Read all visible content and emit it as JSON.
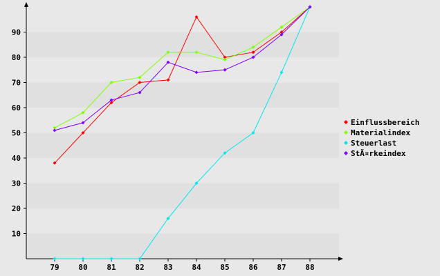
{
  "chart_data": {
    "type": "line",
    "title": "",
    "xlabel": "",
    "ylabel": "",
    "categories": [
      "79",
      "80",
      "81",
      "82",
      "83",
      "84",
      "85",
      "86",
      "87",
      "88"
    ],
    "y_ticks": [
      "10",
      "20",
      "30",
      "40",
      "50",
      "60",
      "70",
      "80",
      "90"
    ],
    "ylim": [
      0,
      100
    ],
    "grid": "alternating horizontal bands",
    "legend": "right",
    "series": [
      {
        "name": "Einflussbereich",
        "color": "#ff0000",
        "values": [
          38,
          50,
          62,
          70,
          71,
          96,
          80,
          82,
          90,
          100
        ]
      },
      {
        "name": "Materialindex",
        "color": "#7fff00",
        "values": [
          52,
          58,
          70,
          72,
          82,
          82,
          79,
          84,
          92,
          100
        ]
      },
      {
        "name": "Steuerlast",
        "color": "#00e5ee",
        "values": [
          0,
          0,
          0,
          0,
          16,
          30,
          42,
          50,
          74,
          100
        ]
      },
      {
        "name": "StÃ¤rkeindex",
        "color": "#7f00ff",
        "values": [
          51,
          54,
          63,
          66,
          78,
          74,
          75,
          80,
          89,
          100
        ]
      }
    ]
  }
}
